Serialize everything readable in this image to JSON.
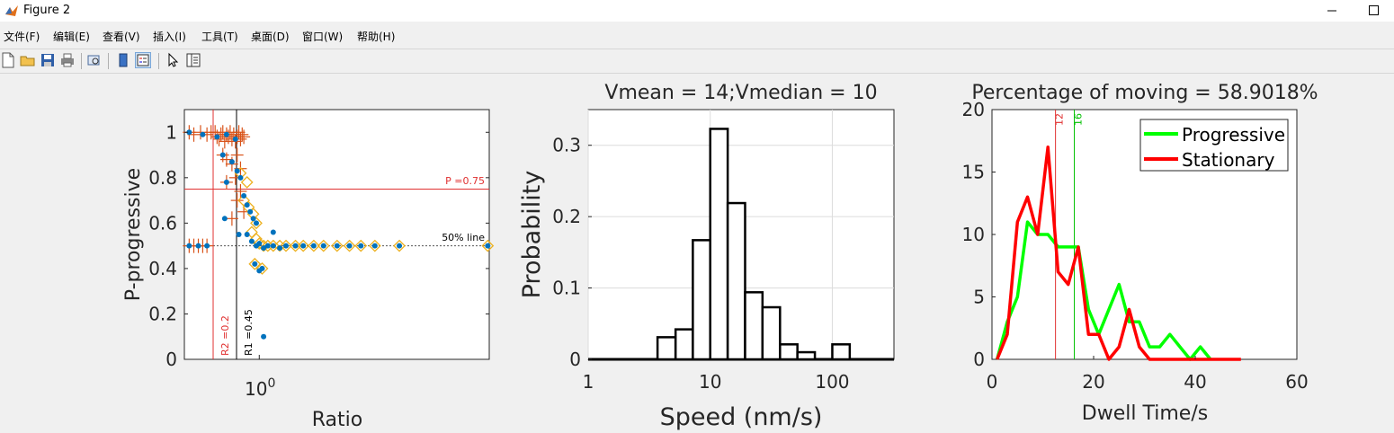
{
  "window": {
    "title": "Figure 2"
  },
  "menu": [
    "文件(F)",
    "编辑(E)",
    "查看(V)",
    "插入(I)",
    "工具(T)",
    "桌面(D)",
    "窗口(W)",
    "帮助(H)"
  ],
  "toolbar": [
    "new-file-icon",
    "open-folder-icon",
    "save-icon",
    "print-icon",
    "print-preview-icon",
    "colorbar-icon",
    "legend-icon",
    "pointer-icon",
    "property-editor-icon"
  ],
  "colors": {
    "orange": "#d95319",
    "blue": "#0072bd",
    "gold": "#edb120",
    "green": "#00ff00",
    "red": "#ff0000",
    "redline": "#e03030"
  },
  "chart_data": [
    {
      "type": "scatter",
      "xlabel": "Ratio",
      "ylabel": "P-progressive",
      "xscale": "log",
      "xlim": [
        0.6,
        4.8
      ],
      "ylim": [
        0,
        1.1
      ],
      "xtick_label": "10",
      "xtick_exp": "0",
      "yticks": [
        "0",
        "0.2",
        "0.4",
        "0.6",
        "0.8",
        "1"
      ],
      "annotations": {
        "p_line": "P =0.75",
        "half_line": "50% line",
        "r1": "R1 =0.45",
        "r2": "R2 =0.2"
      },
      "points_orange": [
        [
          0.62,
          1
        ],
        [
          0.64,
          0.99
        ],
        [
          0.67,
          1
        ],
        [
          0.7,
          0.99
        ],
        [
          0.72,
          1
        ],
        [
          0.74,
          1
        ],
        [
          0.75,
          0.98
        ],
        [
          0.76,
          0.97
        ],
        [
          0.77,
          0.99
        ],
        [
          0.78,
          1
        ],
        [
          0.79,
          0.96
        ],
        [
          0.8,
          0.99
        ],
        [
          0.81,
          0.98
        ],
        [
          0.82,
          1
        ],
        [
          0.83,
          0.97
        ],
        [
          0.84,
          0.99
        ],
        [
          0.85,
          0.96
        ],
        [
          0.86,
          0.98
        ],
        [
          0.87,
          1
        ],
        [
          0.88,
          0.97
        ],
        [
          0.89,
          0.99
        ],
        [
          0.9,
          0.98
        ],
        [
          0.78,
          0.9
        ],
        [
          0.8,
          0.88
        ],
        [
          0.83,
          0.86
        ],
        [
          0.86,
          0.9
        ],
        [
          0.88,
          0.84
        ],
        [
          0.8,
          0.78
        ],
        [
          0.85,
          0.8
        ],
        [
          0.88,
          0.74
        ],
        [
          0.83,
          0.62
        ],
        [
          0.86,
          0.7
        ],
        [
          0.9,
          0.65
        ],
        [
          0.62,
          0.5
        ],
        [
          0.64,
          0.5
        ],
        [
          0.66,
          0.5
        ],
        [
          0.68,
          0.5
        ],
        [
          0.7,
          0.5
        ]
      ],
      "points_blue": [
        [
          0.62,
          1
        ],
        [
          0.68,
          0.99
        ],
        [
          0.75,
          0.98
        ],
        [
          0.8,
          0.99
        ],
        [
          0.85,
          0.97
        ],
        [
          0.78,
          0.9
        ],
        [
          0.83,
          0.87
        ],
        [
          0.86,
          0.83
        ],
        [
          0.8,
          0.78
        ],
        [
          0.88,
          0.8
        ],
        [
          0.9,
          0.72
        ],
        [
          0.92,
          0.68
        ],
        [
          0.94,
          0.65
        ],
        [
          0.96,
          0.62
        ],
        [
          0.98,
          0.6
        ],
        [
          0.92,
          0.55
        ],
        [
          0.95,
          0.52
        ],
        [
          0.98,
          0.5
        ],
        [
          1.0,
          0.51
        ],
        [
          1.03,
          0.49
        ],
        [
          1.06,
          0.5
        ],
        [
          1.1,
          0.5
        ],
        [
          1.15,
          0.49
        ],
        [
          1.2,
          0.5
        ],
        [
          1.28,
          0.5
        ],
        [
          1.35,
          0.5
        ],
        [
          1.45,
          0.5
        ],
        [
          1.55,
          0.5
        ],
        [
          1.7,
          0.5
        ],
        [
          1.85,
          0.5
        ],
        [
          2.0,
          0.5
        ],
        [
          2.2,
          0.5
        ],
        [
          2.6,
          0.5
        ],
        [
          4.75,
          0.5
        ],
        [
          0.97,
          0.42
        ],
        [
          1.0,
          0.39
        ],
        [
          1.02,
          0.4
        ],
        [
          1.03,
          0.1
        ],
        [
          0.87,
          0.55
        ],
        [
          1.1,
          0.56
        ],
        [
          0.62,
          0.5
        ],
        [
          0.66,
          0.5
        ],
        [
          0.7,
          0.5
        ],
        [
          0.79,
          0.62
        ]
      ],
      "points_diamond": [
        [
          0.88,
          0.82
        ],
        [
          0.92,
          0.78
        ],
        [
          0.9,
          0.7
        ],
        [
          0.93,
          0.67
        ],
        [
          0.96,
          0.64
        ],
        [
          0.98,
          0.6
        ],
        [
          0.95,
          0.56
        ],
        [
          0.98,
          0.53
        ],
        [
          1.0,
          0.51
        ],
        [
          1.03,
          0.5
        ],
        [
          1.06,
          0.5
        ],
        [
          1.1,
          0.5
        ],
        [
          1.15,
          0.5
        ],
        [
          1.2,
          0.5
        ],
        [
          1.28,
          0.5
        ],
        [
          1.35,
          0.5
        ],
        [
          1.45,
          0.5
        ],
        [
          1.55,
          0.5
        ],
        [
          1.7,
          0.5
        ],
        [
          1.85,
          0.5
        ],
        [
          2.0,
          0.5
        ],
        [
          2.2,
          0.5
        ],
        [
          2.6,
          0.5
        ],
        [
          4.75,
          0.5
        ],
        [
          0.97,
          0.42
        ],
        [
          1.02,
          0.4
        ]
      ]
    },
    {
      "type": "bar",
      "title": "Vmean = 14;Vmedian = 10",
      "xlabel": "Speed (nm/s)",
      "ylabel": "Probability",
      "xscale": "log",
      "xlim": [
        1,
        320
      ],
      "ylim": [
        0,
        0.35
      ],
      "xticks": [
        "1",
        "10",
        "100"
      ],
      "yticks": [
        "0",
        "0.1",
        "0.2",
        "0.3"
      ],
      "bin_edges": [
        3.7,
        5.2,
        7.2,
        10,
        13.9,
        19.3,
        26.8,
        37.3,
        51.8,
        72,
        100,
        139
      ],
      "values": [
        0.031,
        0.042,
        0.167,
        0.323,
        0.219,
        0.094,
        0.073,
        0.021,
        0.01,
        0,
        0.021
      ]
    },
    {
      "type": "line",
      "title": "Percentage of moving = 58.9018%",
      "xlabel": "Dwell Time/s",
      "xlim": [
        0,
        60
      ],
      "ylim": [
        0,
        20
      ],
      "xticks": [
        "0",
        "20",
        "40",
        "60"
      ],
      "yticks": [
        "0",
        "5",
        "10",
        "15",
        "20"
      ],
      "vlines": [
        {
          "x": 12.5,
          "label": "12",
          "color": "#e03030"
        },
        {
          "x": 16.2,
          "label": "16",
          "color": "#00c000"
        }
      ],
      "series": [
        {
          "name": "Progressive",
          "color": "#00ff00",
          "x": [
            1,
            3,
            5,
            7,
            9,
            11,
            13,
            15,
            17,
            19,
            21,
            23,
            25,
            27,
            29,
            31,
            33,
            35,
            37,
            39,
            41,
            43
          ],
          "y": [
            0,
            3,
            5,
            11,
            10,
            10,
            9,
            9,
            9,
            4,
            2,
            4,
            6,
            3,
            3,
            1,
            1,
            2,
            1,
            0,
            1,
            0
          ]
        },
        {
          "name": "Stationary",
          "color": "#ff0000",
          "x": [
            1,
            3,
            5,
            7,
            9,
            11,
            13,
            15,
            17,
            19,
            21,
            23,
            25,
            27,
            29,
            31,
            33,
            35,
            37,
            39,
            41,
            43,
            45,
            47,
            49
          ],
          "y": [
            0,
            2,
            11,
            13,
            10,
            17,
            7,
            6,
            9,
            2,
            2,
            0,
            1,
            4,
            1,
            0,
            0,
            0,
            0,
            0,
            0,
            0,
            0,
            0,
            0
          ]
        }
      ]
    }
  ]
}
